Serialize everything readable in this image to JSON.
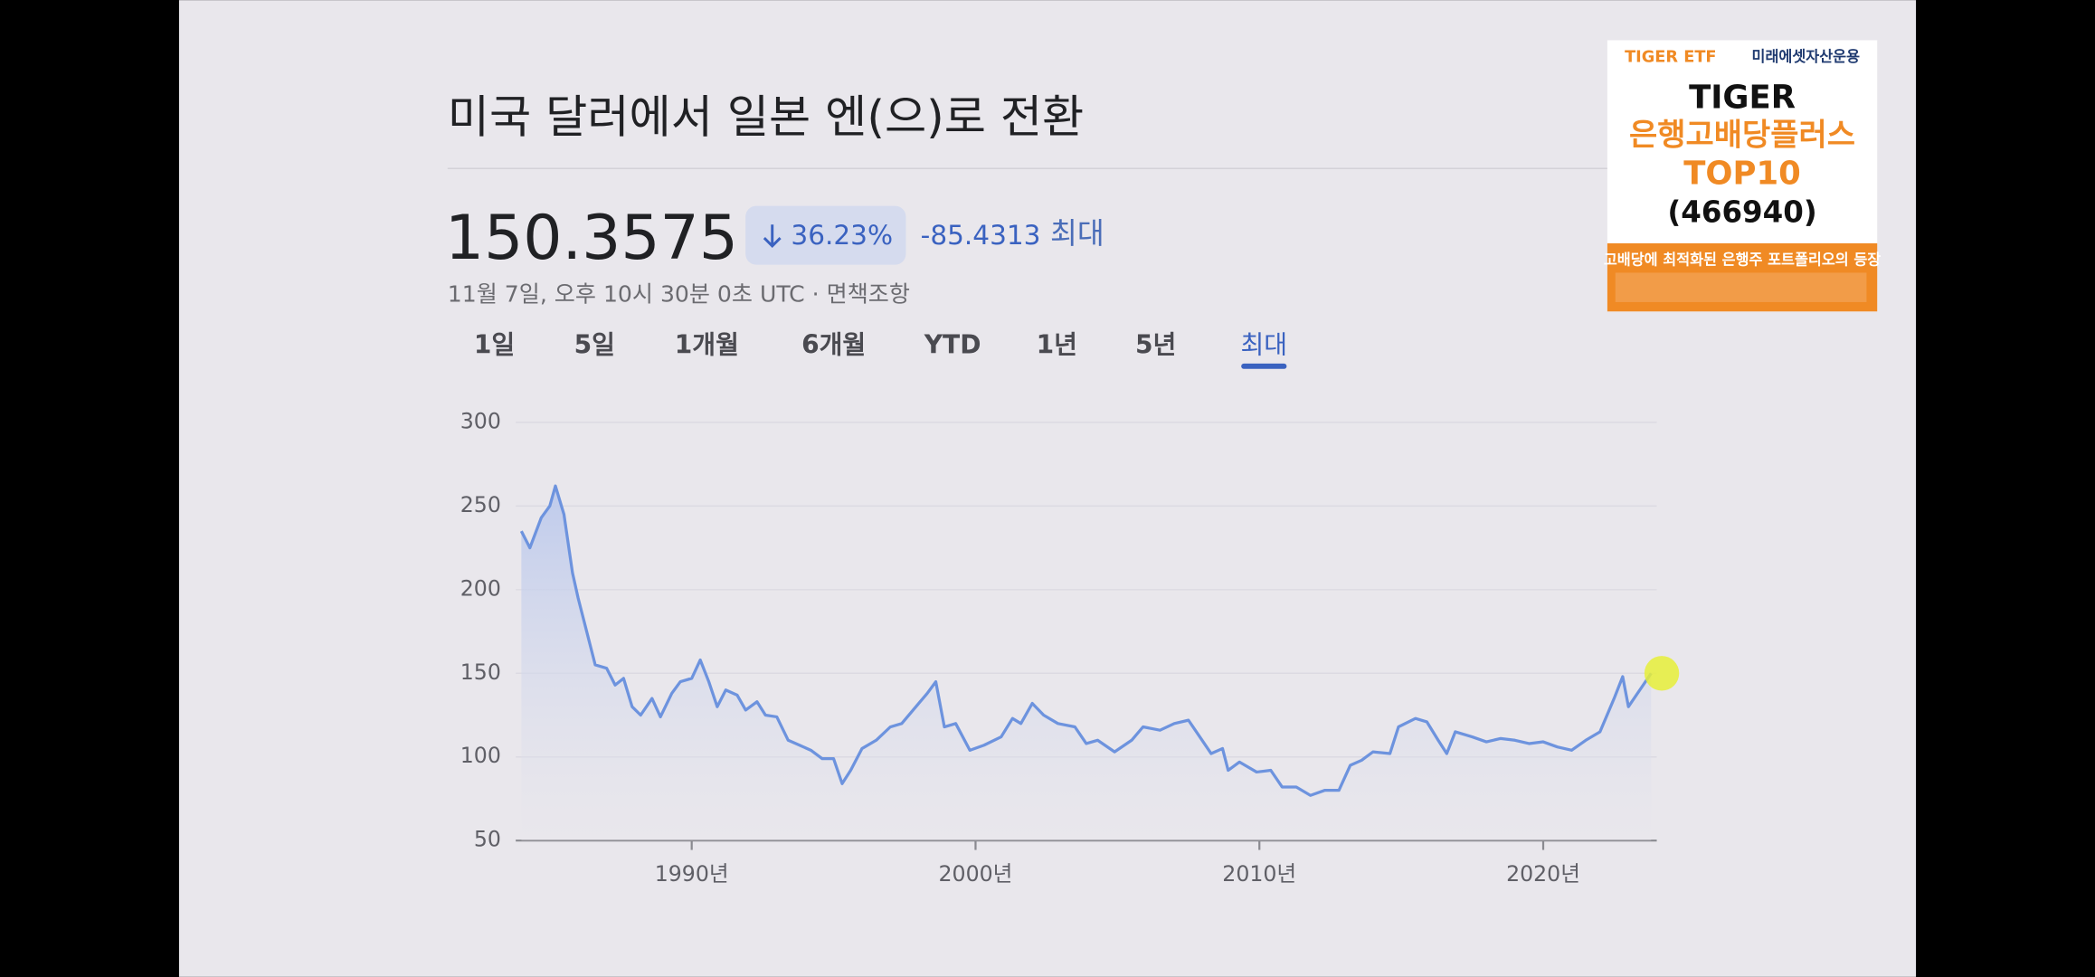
{
  "header": {
    "title": "미국 달러에서 일본 엔(으)로 전환",
    "price": "150.3575",
    "change_percent": "36.23%",
    "change": "-85.4313",
    "period": "최대",
    "timestamp": "11월 7일, 오후 10시 30분 0초 UTC · 면책조항"
  },
  "tabs": [
    "1일",
    "5일",
    "1개월",
    "6개월",
    "YTD",
    "1년",
    "5년",
    "최대"
  ],
  "ad": {
    "brand": "TIGER ETF",
    "company": "미래에셋자산운용",
    "line1": "TIGER",
    "line2": "은행고배당플러스",
    "line3": "TOP10",
    "line4": "(466940)",
    "tagline": "고배당에 최적화된 은행주 포트폴리오의 등장"
  },
  "chart_data": {
    "type": "line",
    "x": [
      1984.0,
      1984.3,
      1984.7,
      1985.0,
      1985.2,
      1985.5,
      1985.8,
      1986.0,
      1986.3,
      1986.6,
      1987.0,
      1987.3,
      1987.6,
      1987.9,
      1988.2,
      1988.6,
      1988.9,
      1989.3,
      1989.6,
      1990.0,
      1990.3,
      1990.6,
      1990.9,
      1991.2,
      1991.6,
      1991.9,
      1992.3,
      1992.6,
      1993.0,
      1993.4,
      1993.8,
      1994.2,
      1994.6,
      1995.0,
      1995.3,
      1995.6,
      1996.0,
      1996.5,
      1997.0,
      1997.4,
      1997.8,
      1998.3,
      1998.6,
      1998.9,
      1999.3,
      1999.8,
      2000.3,
      2000.9,
      2001.3,
      2001.6,
      2002.0,
      2002.4,
      2002.9,
      2003.5,
      2003.9,
      2004.3,
      2004.9,
      2005.5,
      2005.9,
      2006.5,
      2007.0,
      2007.5,
      2007.9,
      2008.3,
      2008.7,
      2008.9,
      2009.3,
      2009.9,
      2010.4,
      2010.8,
      2011.3,
      2011.8,
      2012.3,
      2012.8,
      2013.2,
      2013.6,
      2014.0,
      2014.6,
      2014.9,
      2015.5,
      2015.9,
      2016.3,
      2016.6,
      2016.9,
      2017.5,
      2018.0,
      2018.5,
      2019.0,
      2019.5,
      2020.0,
      2020.5,
      2021.0,
      2021.5,
      2022.0,
      2022.5,
      2022.8,
      2023.0,
      2023.4,
      2023.8
    ],
    "series": [
      {
        "name": "USD/JPY",
        "color": "#6d93de",
        "values": [
          235,
          225,
          243,
          250,
          262,
          245,
          210,
          195,
          175,
          155,
          153,
          143,
          147,
          130,
          125,
          135,
          124,
          138,
          145,
          147,
          158,
          145,
          130,
          140,
          137,
          128,
          133,
          125,
          124,
          110,
          107,
          104,
          99,
          99,
          84,
          92,
          105,
          110,
          118,
          120,
          128,
          138,
          145,
          118,
          120,
          104,
          107,
          112,
          123,
          120,
          132,
          125,
          120,
          118,
          108,
          110,
          103,
          110,
          118,
          116,
          120,
          122,
          112,
          102,
          105,
          92,
          97,
          91,
          92,
          82,
          82,
          77,
          80,
          80,
          95,
          98,
          103,
          102,
          118,
          123,
          121,
          110,
          102,
          115,
          112,
          109,
          111,
          110,
          108,
          109,
          106,
          104,
          110,
          115,
          135,
          148,
          130,
          140,
          150
        ]
      }
    ],
    "xlim": [
      1983.8,
      2024.0
    ],
    "ylim": [
      50,
      300
    ],
    "xticks": [
      {
        "value": 1990,
        "label": "1990년"
      },
      {
        "value": 2000,
        "label": "2000년"
      },
      {
        "value": 2010,
        "label": "2010년"
      },
      {
        "value": 2020,
        "label": "2020년"
      }
    ],
    "yticks": [
      50,
      100,
      150,
      200,
      250,
      300
    ],
    "grid": true
  }
}
